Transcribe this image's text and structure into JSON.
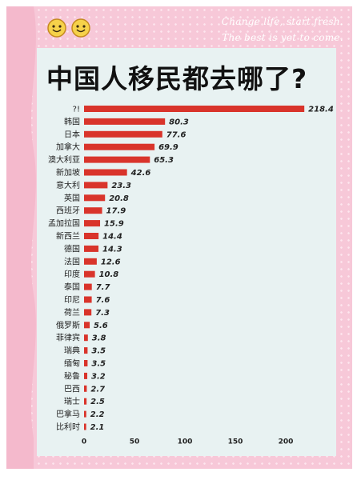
{
  "decor": {
    "slogan_line1": "Change life, start fresh.",
    "slogan_line2": "The best is yet to come."
  },
  "colors": {
    "bar": "#d9342b",
    "background": "#f7c8d8",
    "panel": "#e8f2f2"
  },
  "chart_data": {
    "type": "bar",
    "orientation": "horizontal",
    "title": "中国人移民都去哪了?",
    "categories": [
      "?!",
      "韩国",
      "日本",
      "加拿大",
      "澳大利亚",
      "新加坡",
      "意大利",
      "英国",
      "西班牙",
      "孟加拉国",
      "新西兰",
      "德国",
      "法国",
      "印度",
      "泰国",
      "印尼",
      "荷兰",
      "俄罗斯",
      "菲律宾",
      "瑞典",
      "缅甸",
      "秘鲁",
      "巴西",
      "瑞士",
      "巴拿马",
      "比利时"
    ],
    "values": [
      218.4,
      80.3,
      77.6,
      69.9,
      65.3,
      42.6,
      23.3,
      20.8,
      17.9,
      15.9,
      14.4,
      14.3,
      12.6,
      10.8,
      7.7,
      7.6,
      7.3,
      5.6,
      3.8,
      3.5,
      3.5,
      3.2,
      2.7,
      2.5,
      2.2,
      2.1
    ],
    "value_labels": [
      "218.4",
      "80.3",
      "77.6",
      "69.9",
      "65.3",
      "42.6",
      "23.3",
      "20.8",
      "17.9",
      "15.9",
      "14.4",
      "14.3",
      "12.6",
      "10.8",
      "7.7",
      "7.6",
      "7.3",
      "5.6",
      "3.8",
      "3.5",
      "3.5",
      "3.2",
      "2.7",
      "2.5",
      "2.2",
      "2.1"
    ],
    "xticks": [
      "0",
      "50",
      "100",
      "150",
      "200"
    ],
    "xlim": [
      0,
      230
    ],
    "grid": false,
    "legend": "none"
  }
}
